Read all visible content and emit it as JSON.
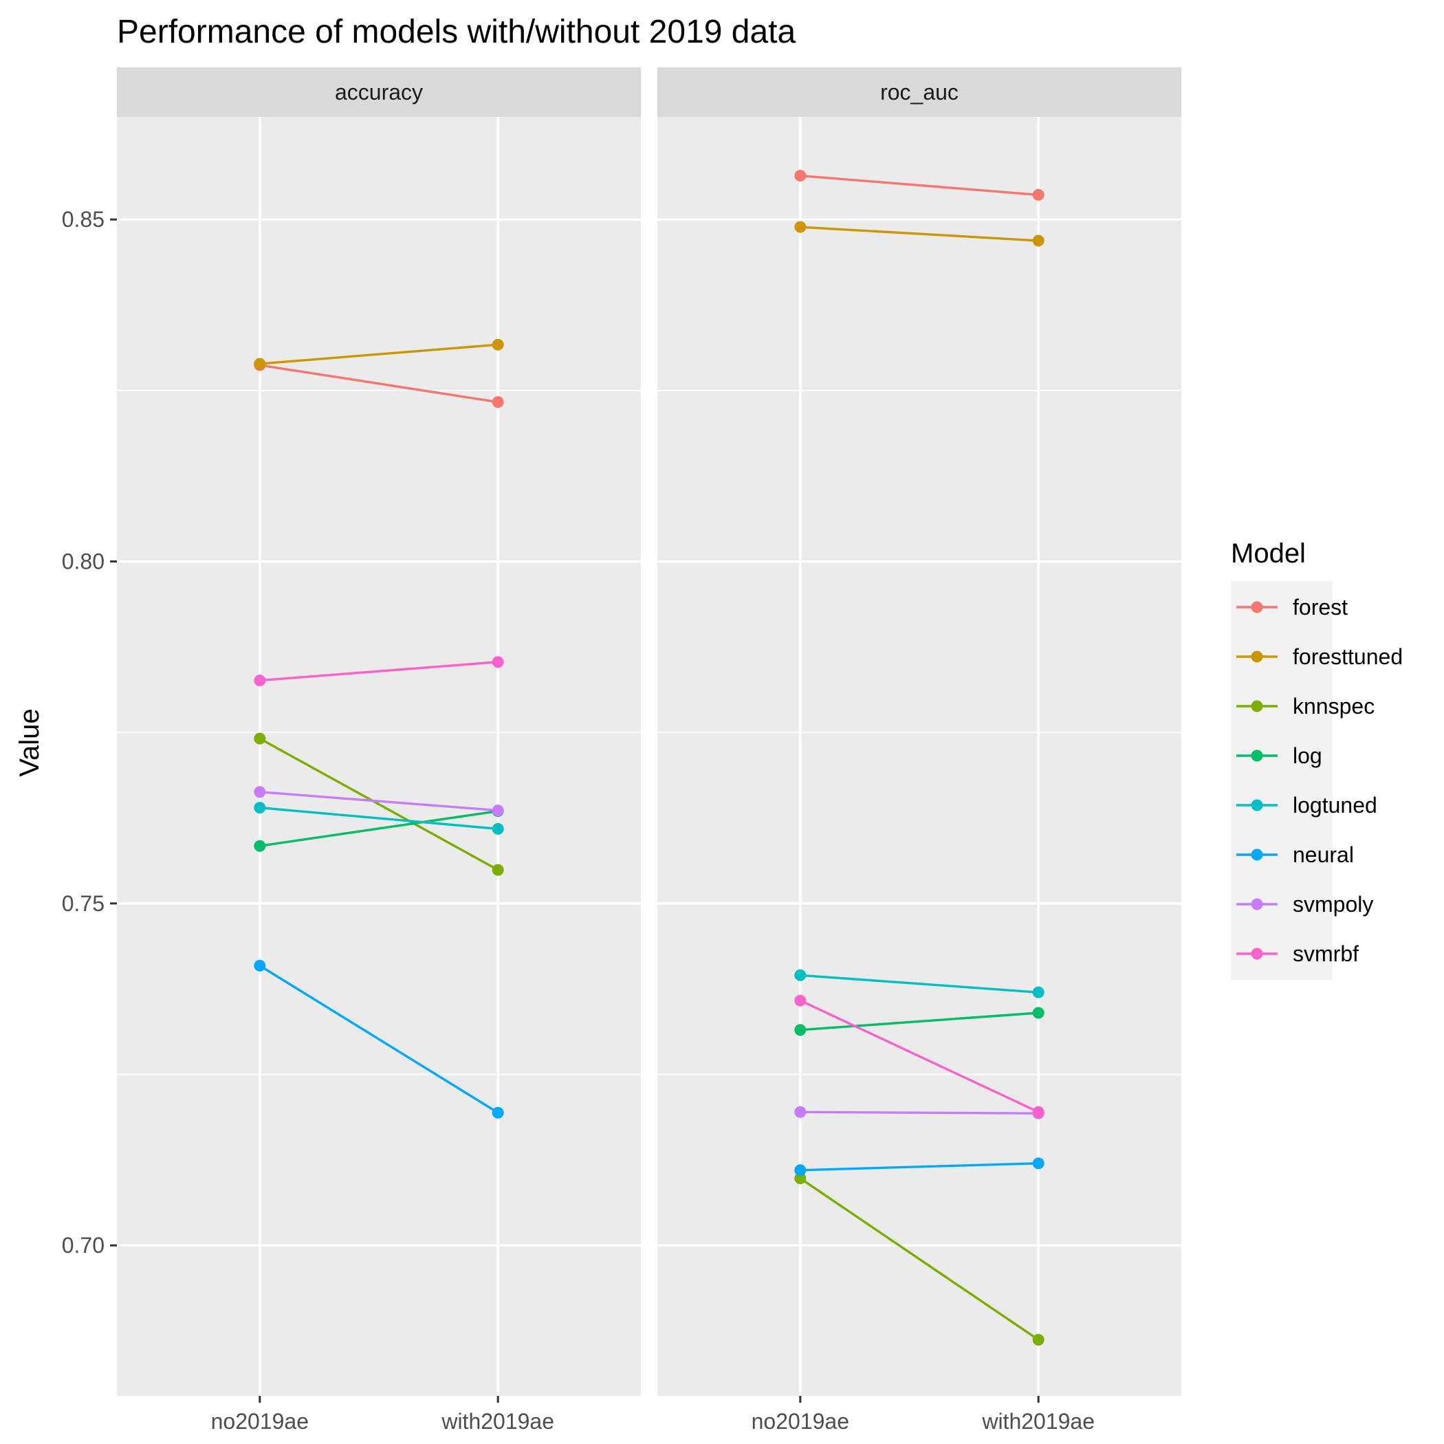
{
  "chart_data": {
    "type": "line",
    "title": "Performance of models with/without 2019 data",
    "xlabel": "",
    "ylabel": "Value",
    "ylim": [
      0.678,
      0.865
    ],
    "y_ticks": [
      "0.70",
      "0.75",
      "0.80",
      "0.85"
    ],
    "y_tick_values": [
      0.7,
      0.75,
      0.8,
      0.85
    ],
    "categories": [
      "no2019ae",
      "with2019ae"
    ],
    "grid": true,
    "legend_title": "Model",
    "legend_position": "right",
    "facets": [
      {
        "label": "accuracy",
        "series": [
          {
            "name": "forest",
            "color": "#F8766D",
            "values": [
              0.8287,
              0.8233
            ]
          },
          {
            "name": "foresttuned",
            "color": "#CD9600",
            "values": [
              0.8289,
              0.8317
            ]
          },
          {
            "name": "knnspec",
            "color": "#7CAE00",
            "values": [
              0.7741,
              0.7549
            ]
          },
          {
            "name": "log",
            "color": "#00BE67",
            "values": [
              0.7584,
              0.7635
            ]
          },
          {
            "name": "logtuned",
            "color": "#00BFC4",
            "values": [
              0.764,
              0.7609
            ]
          },
          {
            "name": "neural",
            "color": "#00A9FF",
            "values": [
              0.7409,
              0.7194
            ]
          },
          {
            "name": "svmpoly",
            "color": "#C77CFF",
            "values": [
              0.7663,
              0.7636
            ]
          },
          {
            "name": "svmrbf",
            "color": "#FF61CC",
            "values": [
              0.7826,
              0.7853
            ]
          }
        ]
      },
      {
        "label": "roc_auc",
        "series": [
          {
            "name": "forest",
            "color": "#F8766D",
            "values": [
              0.8564,
              0.8536
            ]
          },
          {
            "name": "foresttuned",
            "color": "#CD9600",
            "values": [
              0.8489,
              0.8469
            ]
          },
          {
            "name": "knnspec",
            "color": "#7CAE00",
            "values": [
              0.7098,
              0.6862
            ]
          },
          {
            "name": "log",
            "color": "#00BE67",
            "values": [
              0.7315,
              0.734
            ]
          },
          {
            "name": "logtuned",
            "color": "#00BFC4",
            "values": [
              0.7395,
              0.737
            ]
          },
          {
            "name": "neural",
            "color": "#00A9FF",
            "values": [
              0.711,
              0.712
            ]
          },
          {
            "name": "svmpoly",
            "color": "#C77CFF",
            "values": [
              0.7195,
              0.7193
            ]
          },
          {
            "name": "svmrbf",
            "color": "#FF61CC",
            "values": [
              0.7358,
              0.7195
            ]
          }
        ]
      }
    ]
  }
}
